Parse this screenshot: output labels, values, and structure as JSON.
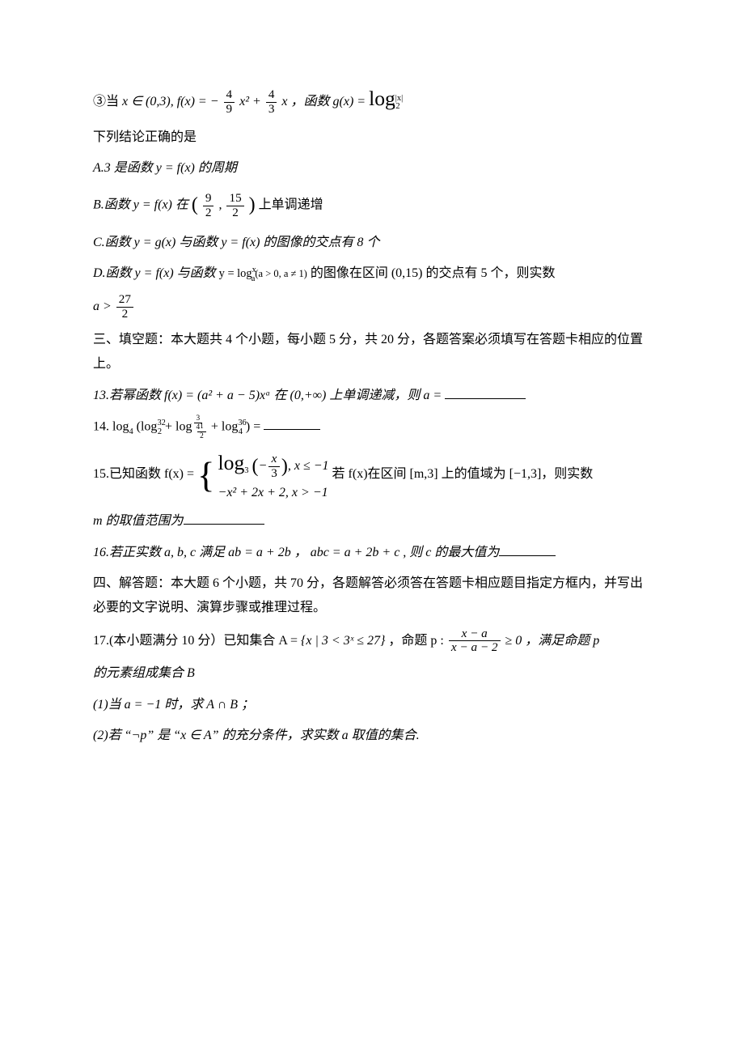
{
  "cond3_prefix": "③当 ",
  "cond3_xrange": "x ∈ (0,3), f(x) = −",
  "f49n": "4",
  "f49d": "9",
  "cond3_x2": "x² + ",
  "f43n": "4",
  "f43d": "3",
  "cond3_xend": "x ，函数 g(x) = ",
  "cond3_log": "log",
  "cond3_log_sup": "|x|",
  "cond3_log_sub": "12",
  "q12_stem": "下列结论正确的是",
  "q12_A": "A.3 是函数 y = f(x) 的周期",
  "q12_B_pre": "B.函数 y = f(x) 在",
  "q12_B_n1": "9",
  "q12_B_d1": "2",
  "q12_B_n2": "15",
  "q12_B_d2": "2",
  "q12_B_post": "上单调递增",
  "q12_C": "C.函数 y = g(x) 与函数 y = f(x) 的图像的交点有 8 个",
  "q12_D_pre": "D.函数 y = f(x) 与函数 ",
  "q12_D_log": "y = log",
  "q12_D_log_sup": "x",
  "q12_D_log_sub": "a",
  "q12_D_log_cond": "(a > 0, a ≠ 1)",
  "q12_D_mid": "的图像在区间 (0,15) 的交点有 5 个，则实数",
  "q12_D_a": "a > ",
  "q12_D_fn": "27",
  "q12_D_fd": "2",
  "sec3": "三、填空题：本大题共 4 个小题，每小题 5 分，共 20 分，各题答案必须填写在答题卡相应的位置上。",
  "q13": "13.若幂函数 f(x) = (a² + a − 5)xᵃ 在 (0,+∞) 上单调递减，则 a = ",
  "q14_pre": "14.  log",
  "q14_sub4_1": "4",
  "q14_open": "(log",
  "q14_t1_sup": "32",
  "q14_t1_sub": "2",
  "q14_plus1": " + log",
  "q14_t2_supn": "3",
  "q14_t2_supd": "4",
  "q14_t2_subn": "1",
  "q14_t2_subd": "2",
  "q14_plus2": " + log",
  "q14_t3_sup": "36",
  "q14_t3_sub": "4",
  "q14_close": ") = ",
  "q15_pre": "15.已知函数 f(x) = ",
  "q15_r1_log": "log",
  "q15_r1_sub": "3",
  "q15_r1_argpre": "−",
  "q15_r1_argn": "x",
  "q15_r1_argd": "3",
  "q15_r1_cond": ", x ≤ −1",
  "q15_r2": "−x² + 2x + 2, x > −1",
  "q15_post": " 若 f(x)在区间 [m,3] 上的值域为 [−1,3]，则实数",
  "q15_line2": "m 的取值范围为",
  "q16": "16.若正实数 a, b, c 满足 ab = a + 2b ， abc = a + 2b + c , 则 c 的最大值为",
  "sec4": "四、解答题：本大题 6 个小题，共 70 分，各题解答必须答在答题卡相应题目指定方框内，并写出必要的文字说明、演算步骤或推理过程。",
  "q17_pre": "17.(本小题满分 10 分）已知集合 A = ",
  "q17_set": "{x | 3 < 3ˣ ≤ 27}",
  "q17_mid1": "，命题 p : ",
  "q17_fn": "x − a",
  "q17_fd": "x − a − 2",
  "q17_geq": " ≥ 0 ，满足命题 p",
  "q17_line2": "的元素组成集合 B",
  "q17_1": "(1)当 a = −1 时，求 A ∩ B ；",
  "q17_2": "(2)若 “¬p” 是 “x ∈ A” 的充分条件，求实数 a 取值的集合."
}
